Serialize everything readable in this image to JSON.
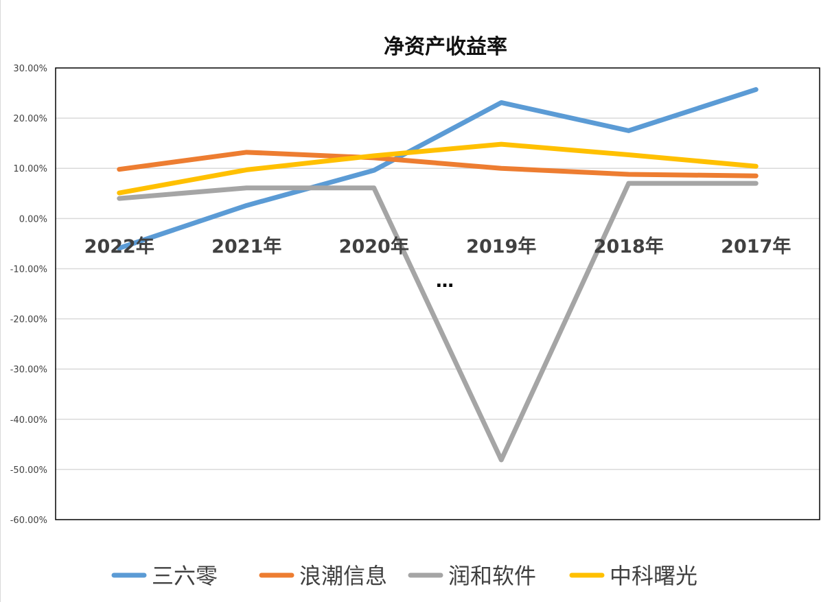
{
  "chart_data": {
    "type": "line",
    "title": "净资产收益率",
    "categories": [
      "2022年",
      "2021年",
      "2020年",
      "2019年",
      "2018年",
      "2017年"
    ],
    "y_tick_labels": [
      "30.00%",
      "20.00%",
      "10.00%",
      "0.00%",
      "-10.00%",
      "-20.00%",
      "-30.00%",
      "-40.00%",
      "-50.00%",
      "-60.00%"
    ],
    "ylim": [
      -60,
      30
    ],
    "y_unit": "%",
    "grid": true,
    "legend_position": "bottom",
    "annotation": "…",
    "series": [
      {
        "name": "三六零",
        "color": "#5b9bd5",
        "values": [
          -5.9,
          2.6,
          9.6,
          23.1,
          17.5,
          25.7
        ]
      },
      {
        "name": "浪潮信息",
        "color": "#ed7d31",
        "values": [
          9.8,
          13.2,
          12.1,
          10.0,
          8.8,
          8.5
        ]
      },
      {
        "name": "润和软件",
        "color": "#a5a5a5",
        "values": [
          4.0,
          6.1,
          6.1,
          -48.1,
          7.0,
          7.0
        ]
      },
      {
        "name": "中科曙光",
        "color": "#ffc000",
        "values": [
          5.1,
          9.7,
          12.5,
          14.8,
          12.7,
          10.4
        ]
      }
    ]
  }
}
